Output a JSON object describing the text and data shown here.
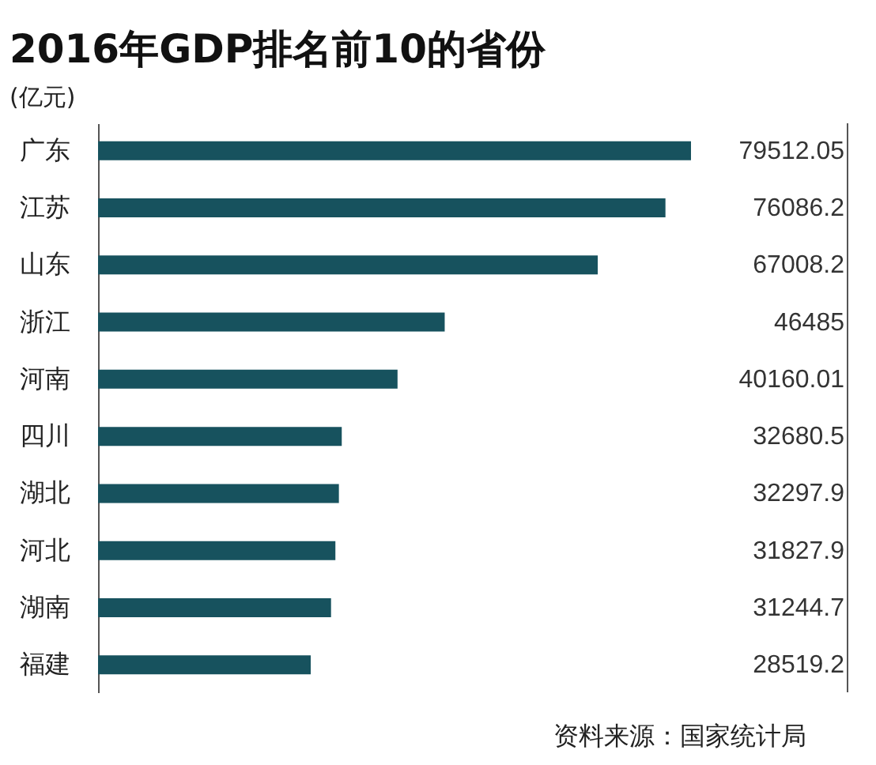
{
  "chart_data": {
    "type": "bar",
    "orientation": "horizontal",
    "title": "2016年GDP排名前10的省份",
    "ylabel": "(亿元)",
    "categories": [
      "广东",
      "江苏",
      "山东",
      "浙江",
      "河南",
      "四川",
      "湖北",
      "河北",
      "湖南",
      "福建"
    ],
    "values": [
      79512.05,
      76086.2,
      67008.2,
      46485,
      40160.01,
      32680.5,
      32297.9,
      31827.9,
      31244.7,
      28519.2
    ],
    "color": "#17525e",
    "data_labels": true,
    "annotations": [
      "资料来源：国家统计局"
    ]
  }
}
